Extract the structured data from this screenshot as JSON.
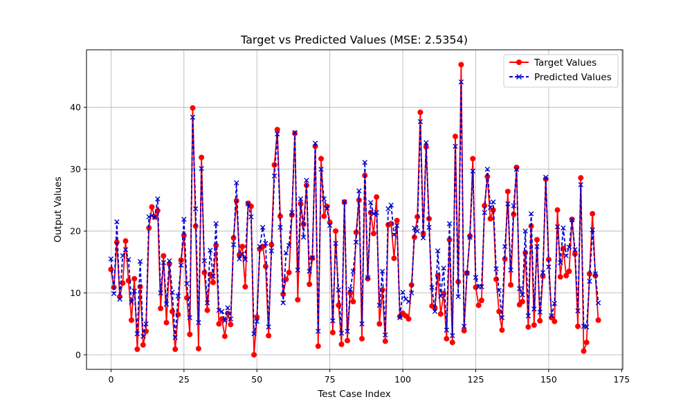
{
  "chart_data": {
    "type": "line",
    "title": "Target vs Predicted Values (MSE: 2.5354)",
    "xlabel": "Test Case Index",
    "ylabel": "Output Values",
    "xlim": [
      -8.4,
      175.4
    ],
    "ylim": [
      -2.35,
      49.3
    ],
    "xticks": [
      0,
      25,
      50,
      75,
      100,
      125,
      150,
      175
    ],
    "yticks": [
      0,
      10,
      20,
      30,
      40
    ],
    "grid": true,
    "legend_position": "top-right",
    "series": [
      {
        "name": "Target Values",
        "color": "#ff0000",
        "line_style": "solid",
        "marker": "circle",
        "values": [
          13.8,
          10.9,
          18.2,
          9.4,
          11.6,
          18.4,
          12.0,
          5.6,
          12.3,
          0.9,
          11.0,
          1.6,
          3.8,
          20.5,
          23.9,
          22.3,
          23.3,
          7.5,
          16.0,
          5.2,
          14.7,
          7.0,
          0.9,
          6.5,
          15.3,
          19.3,
          9.2,
          3.3,
          39.9,
          20.8,
          1.0,
          31.9,
          13.3,
          7.2,
          13.0,
          11.7,
          17.7,
          5.0,
          5.8,
          3.0,
          6.7,
          4.9,
          18.9,
          24.9,
          16.2,
          17.5,
          11.0,
          24.5,
          24.0,
          0.0,
          6.1,
          17.1,
          17.5,
          14.3,
          3.1,
          17.8,
          30.7,
          36.4,
          22.4,
          9.8,
          12.2,
          13.3,
          22.6,
          35.8,
          8.9,
          24.4,
          21.1,
          27.4,
          11.4,
          15.6,
          33.7,
          1.4,
          31.7,
          22.4,
          24.0,
          21.4,
          3.6,
          20.0,
          8.0,
          1.7,
          24.7,
          2.3,
          10.0,
          8.6,
          19.8,
          25.0,
          2.6,
          29.0,
          12.3,
          23.0,
          19.6,
          25.5,
          5.0,
          10.5,
          2.2,
          21.0,
          21.2,
          15.6,
          21.7,
          6.2,
          6.7,
          6.3,
          5.8,
          11.3,
          19.0,
          22.3,
          39.2,
          19.6,
          33.6,
          22.0,
          7.9,
          7.6,
          12.8,
          6.6,
          9.9,
          2.6,
          18.6,
          2.0,
          35.3,
          11.8,
          46.9,
          3.9,
          13.2,
          19.2,
          31.7,
          10.9,
          8.0,
          8.8,
          24.1,
          28.8,
          22.0,
          23.4,
          12.2,
          7.0,
          4.0,
          15.5,
          26.4,
          11.3,
          22.7,
          30.3,
          8.1,
          8.6,
          16.5,
          4.5,
          20.8,
          4.8,
          18.6,
          5.5,
          12.7,
          28.4,
          15.4,
          6.0,
          5.4,
          23.4,
          12.6,
          17.2,
          12.8,
          13.5,
          21.9,
          16.3,
          4.6,
          28.6,
          0.6,
          2.0,
          13.1,
          22.8,
          12.8,
          5.6
        ]
      },
      {
        "name": "Predicted Values",
        "color": "#0000cc",
        "line_style": "dashed",
        "marker": "x",
        "values": [
          15.5,
          9.9,
          21.5,
          9.0,
          16.0,
          17.0,
          15.4,
          8.5,
          10.3,
          3.4,
          15.1,
          3.0,
          5.0,
          22.3,
          22.5,
          22.2,
          25.2,
          10.0,
          14.9,
          8.2,
          15.2,
          10.1,
          2.8,
          9.5,
          14.5,
          21.9,
          11.5,
          6.0,
          38.4,
          23.6,
          5.2,
          30.1,
          15.2,
          8.4,
          16.9,
          12.7,
          21.2,
          7.2,
          7.0,
          5.5,
          7.6,
          5.8,
          17.8,
          27.8,
          15.5,
          16.3,
          15.4,
          24.4,
          22.3,
          3.4,
          5.4,
          17.5,
          20.6,
          18.0,
          4.5,
          16.8,
          28.9,
          35.7,
          20.6,
          8.4,
          16.5,
          17.7,
          23.0,
          35.9,
          13.7,
          25.2,
          19.0,
          28.2,
          13.5,
          15.7,
          34.2,
          3.8,
          30.0,
          25.2,
          23.7,
          20.9,
          5.5,
          18.0,
          10.5,
          3.5,
          24.7,
          3.8,
          10.6,
          13.5,
          18.2,
          26.5,
          5.0,
          31.1,
          12.5,
          24.6,
          22.8,
          23.0,
          8.0,
          13.5,
          3.2,
          23.6,
          24.2,
          19.4,
          20.9,
          6.0,
          10.1,
          9.0,
          8.6,
          10.0,
          20.5,
          20.0,
          37.7,
          18.9,
          34.3,
          20.6,
          10.9,
          7.0,
          16.8,
          9.5,
          14.0,
          4.0,
          21.2,
          3.1,
          33.7,
          9.4,
          44.1,
          4.6,
          13.2,
          19.0,
          29.7,
          12.5,
          11.0,
          11.0,
          23.0,
          30.0,
          23.8,
          24.7,
          13.9,
          10.4,
          6.0,
          17.5,
          24.4,
          13.7,
          24.1,
          30.0,
          10.7,
          9.7,
          20.0,
          6.3,
          22.8,
          7.4,
          17.5,
          6.9,
          13.3,
          28.7,
          14.2,
          6.3,
          8.3,
          20.7,
          14.9,
          20.5,
          16.0,
          17.4,
          21.8,
          17.0,
          7.1,
          27.5,
          4.6,
          4.5,
          11.9,
          20.2,
          13.1,
          8.4
        ]
      }
    ]
  }
}
